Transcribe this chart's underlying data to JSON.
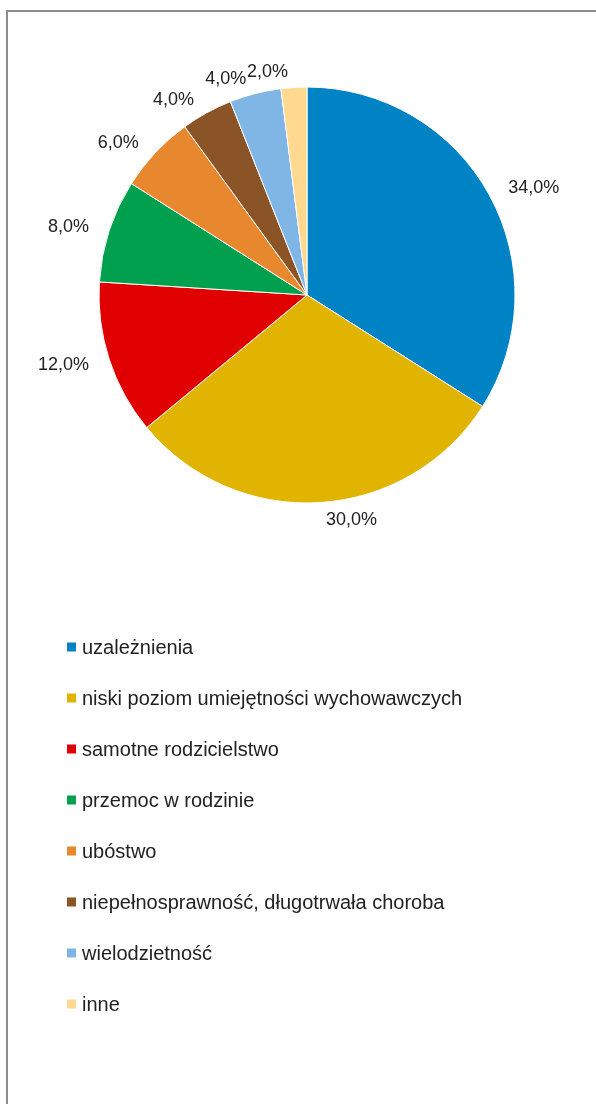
{
  "chart_data": {
    "type": "pie",
    "categories": [
      "uzależnienia",
      "niski poziom umiejętności wychowawczych",
      "samotne rodzicielstwo",
      "przemoc w rodzinie",
      "ubóstwo",
      "niepełnosprawność, długotrwała choroba",
      "wielodzietność",
      "inne"
    ],
    "values": [
      34,
      30,
      12,
      8,
      6,
      4,
      4,
      2
    ],
    "colors": [
      "#0083c4",
      "#e0b400",
      "#e00000",
      "#00a04e",
      "#e8882e",
      "#8a5426",
      "#7fb6e6",
      "#ffd98f"
    ],
    "value_labels": [
      "34,0%",
      "30,0%",
      "12,0%",
      "8,0%",
      "6,0%",
      "4,0%",
      "4,0%",
      "2,0%"
    ],
    "legend": "bottom"
  }
}
